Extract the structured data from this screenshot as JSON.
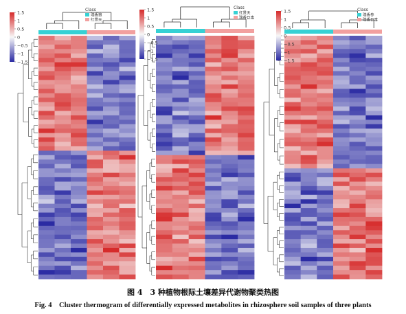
{
  "colors": {
    "low": "#2b2ba3",
    "mid": "#f7f7f7",
    "high": "#d62b2b",
    "group_cyan": "#36d1d4",
    "group_pink": "#f2a09f",
    "tree": "#333333"
  },
  "caption": {
    "cn": "图 4　3 种植物根际土壤差异代谢物聚类热图",
    "en": "Fig. 4　Cluster thermogram of differentially expressed metabolites in rhizosphere soil samples of three plants"
  },
  "chart_data": [
    {
      "type": "heatmap",
      "color_scale": {
        "min": -1.5,
        "max": 1.5,
        "ticks": [
          "1.5",
          "1",
          "0.5",
          "0",
          "−0.5",
          "−1",
          "−1.5"
        ]
      },
      "legend": {
        "title": "Class",
        "items": [
          "瑞香狼",
          "红景天"
        ]
      },
      "columns": [
        {
          "group": "瑞香狼",
          "count": 3
        },
        {
          "group": "红景天",
          "count": 3
        }
      ],
      "row_clusters": [
        {
          "rows": 26,
          "left_group": "high",
          "right_group": "low"
        },
        {
          "rows": 29,
          "left_group": "low",
          "right_group": "high"
        }
      ]
    },
    {
      "type": "heatmap",
      "color_scale": {
        "min": -1.5,
        "max": 1.5,
        "ticks": [
          "1.5",
          "1",
          "0.5",
          "0",
          "−0.5",
          "−1",
          "−1.5"
        ]
      },
      "legend": {
        "title": "Class",
        "items": [
          "红景天",
          "瑞香巨毒"
        ]
      },
      "columns": [
        {
          "group": "红景天",
          "count": 3
        },
        {
          "group": "瑞香巨毒",
          "count": 3
        }
      ],
      "row_clusters": [
        {
          "rows": 27,
          "left_group": "low",
          "right_group": "high"
        },
        {
          "rows": 28,
          "left_group": "high",
          "right_group": "low"
        }
      ]
    },
    {
      "type": "heatmap",
      "color_scale": {
        "min": -1.5,
        "max": 1.5,
        "ticks": [
          "1.5",
          "1",
          "0.5",
          "0",
          "−0.5",
          "−1",
          "−1.5"
        ]
      },
      "legend": {
        "title": "Class",
        "items": [
          "瑞香参",
          "瑞香巨毒"
        ]
      },
      "columns": [
        {
          "group": "瑞香参",
          "count": 3
        },
        {
          "group": "瑞香巨毒",
          "count": 3
        }
      ],
      "row_clusters": [
        {
          "rows": 30,
          "left_group": "high",
          "right_group": "low"
        },
        {
          "rows": 25,
          "left_group": "low",
          "right_group": "high"
        }
      ]
    }
  ]
}
